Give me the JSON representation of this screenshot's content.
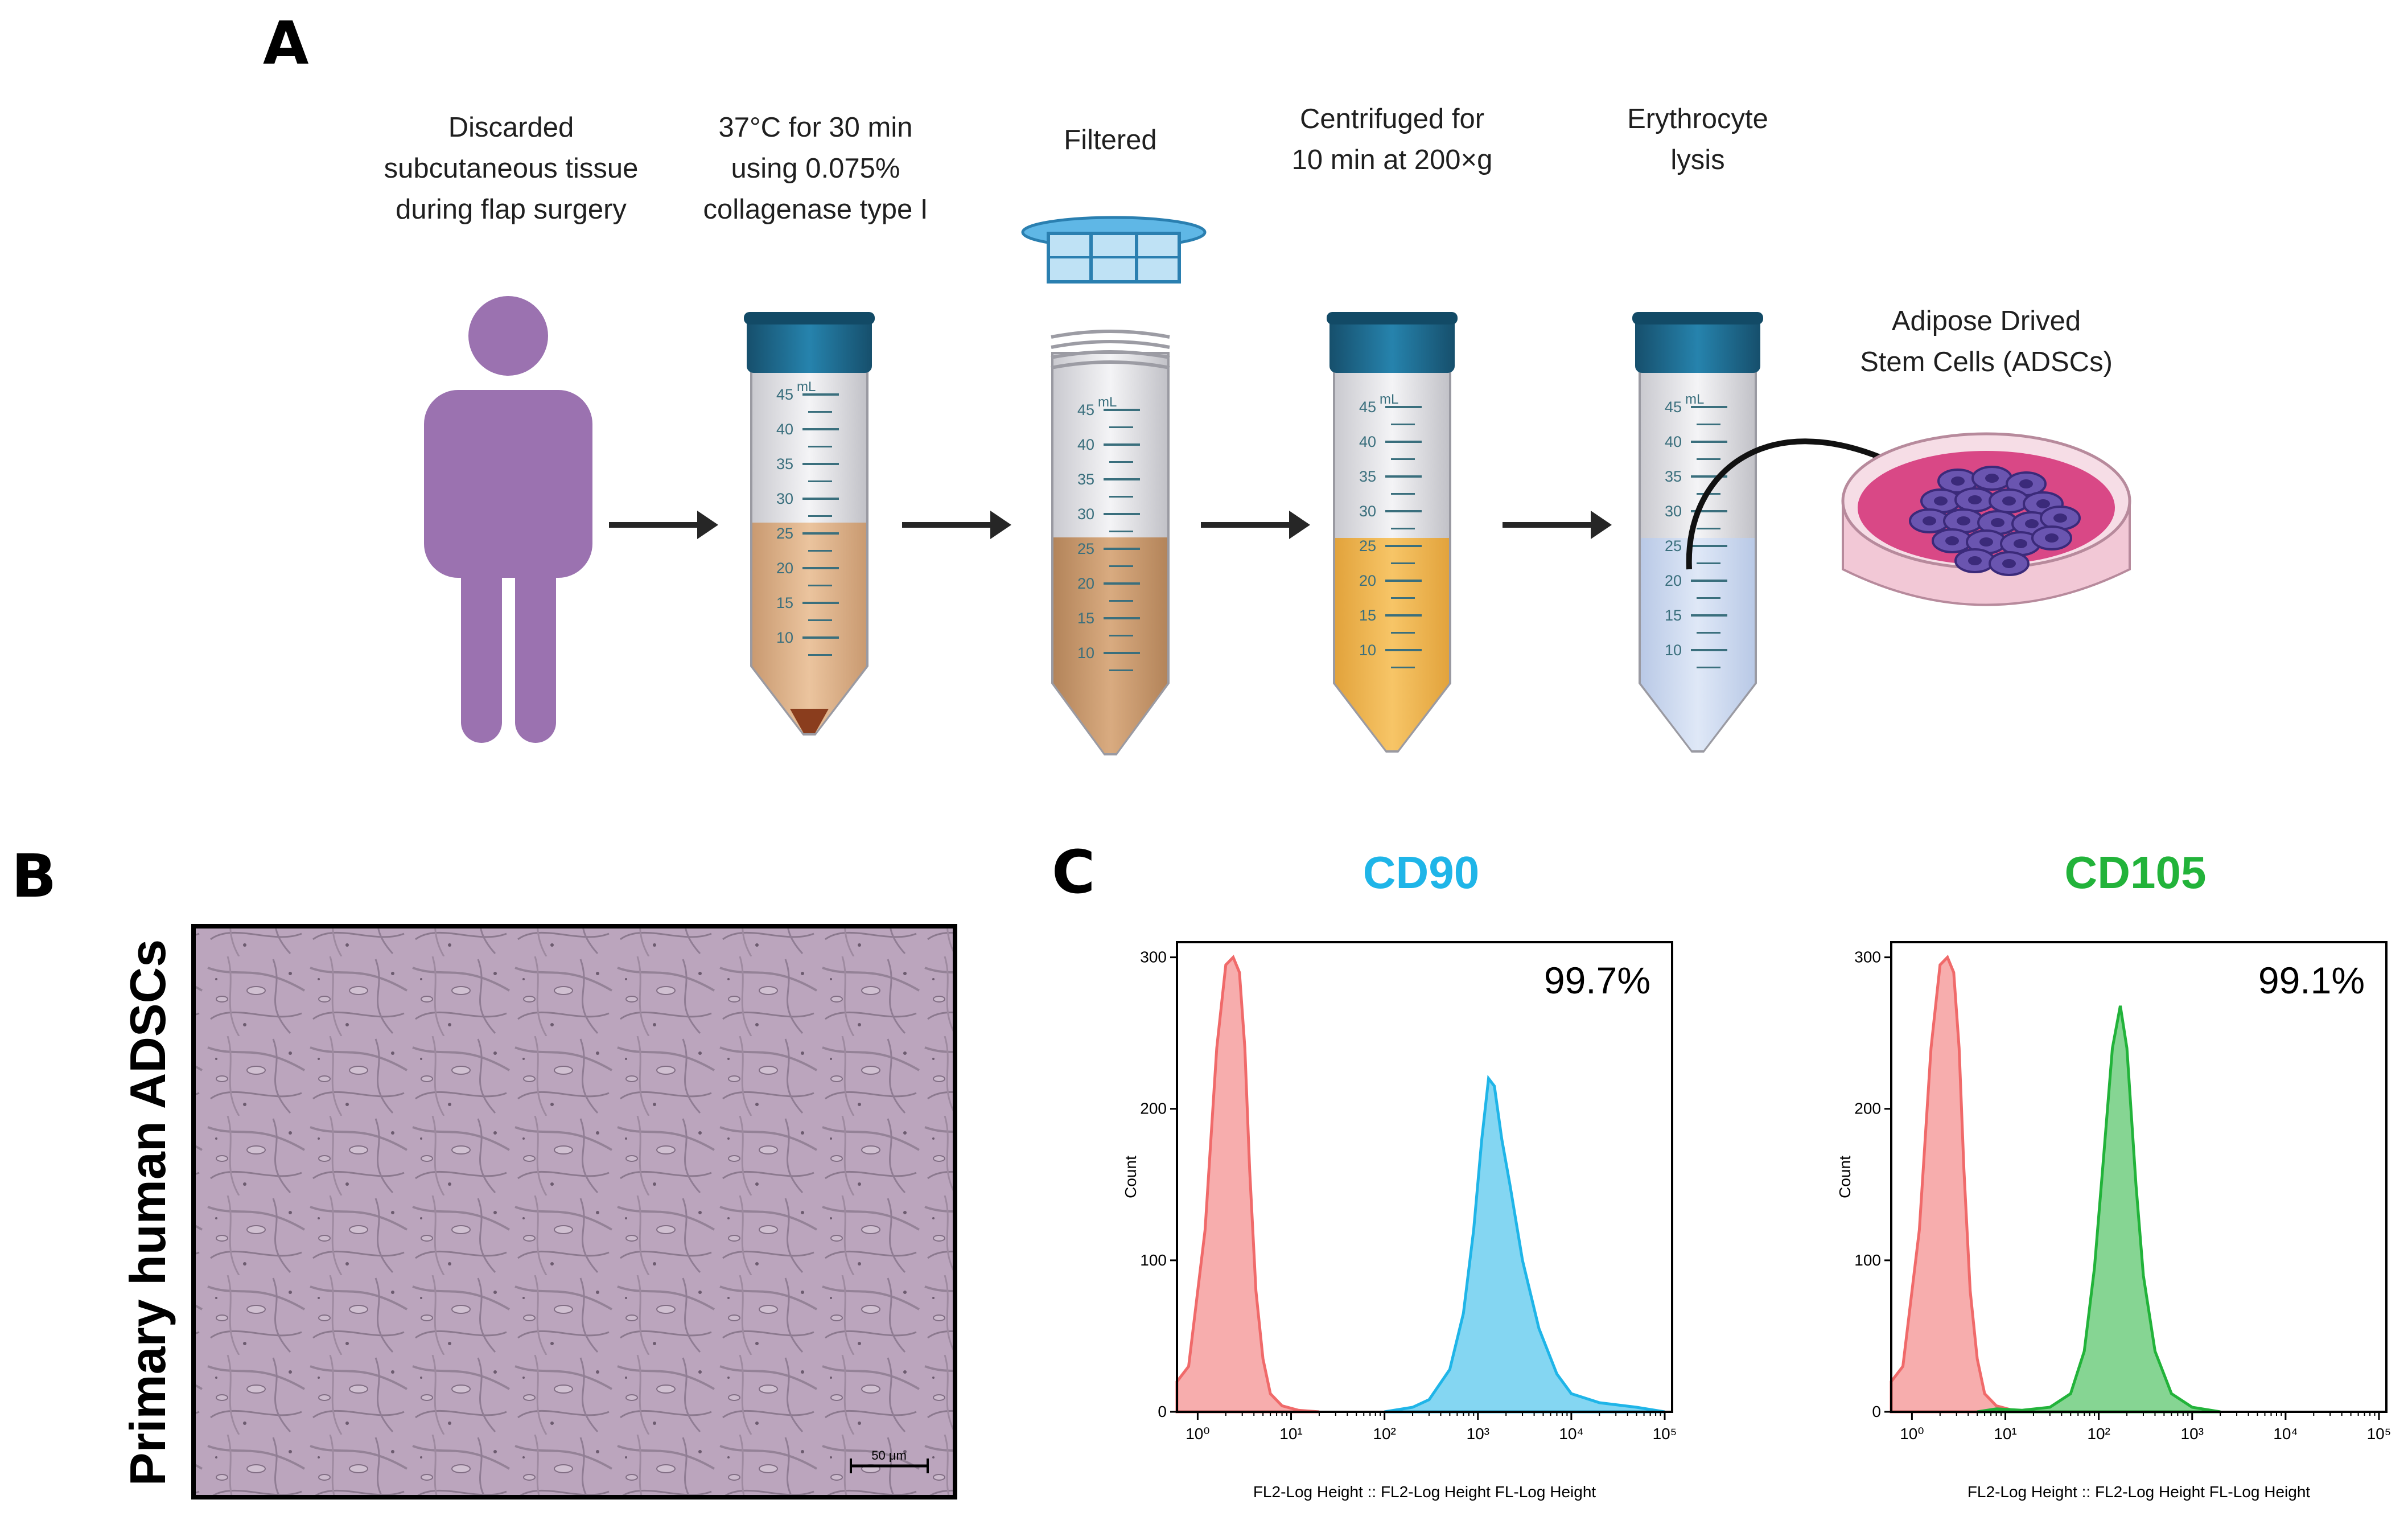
{
  "panels": {
    "a": "A",
    "b": "B",
    "c": "C"
  },
  "steps": {
    "s1": [
      "Discarded",
      "subcutaneous tissue",
      "during flap surgery"
    ],
    "s2": [
      "37°C for 30 min",
      "using 0.075%",
      "collagenase type I"
    ],
    "s3": [
      "Filtered"
    ],
    "s4": [
      "Centrifuged for",
      "10 min at  200×g"
    ],
    "s5": [
      "Erythrocyte",
      "lysis"
    ],
    "s6": [
      "Adipose Drived",
      "Stem Cells (ADSCs)"
    ]
  },
  "tube": {
    "unit": "mL",
    "ticks": [
      "45",
      "40",
      "35",
      "30",
      "25",
      "20",
      "15",
      "10"
    ]
  },
  "micrograph": {
    "ylabel": "Primary human ADSCs",
    "scale_bar": "50 μm"
  },
  "colors": {
    "person": "#9b72b0",
    "cap": "#1f6e96",
    "cd90": "#1fb5e8",
    "cd105": "#22b33a",
    "control": "#f06a6a"
  },
  "chart_data": [
    {
      "type": "area",
      "title": "CD90",
      "annotation": "99.7%",
      "ylabel": "Count",
      "xlabel": "FL2-Log  Height :: FL2-Log  Height FL-Log  Height",
      "xscale": "log",
      "xlim": [
        0.6,
        120000
      ],
      "ylim": [
        0,
        310
      ],
      "yticks": [
        "300",
        "200",
        "100",
        "0"
      ],
      "xtick_labels": [
        "10⁰",
        "10¹",
        "10²",
        "10³",
        "10⁴",
        "10⁵"
      ],
      "series": [
        {
          "name": "control",
          "color": "#f06a6a",
          "x": [
            0.6,
            0.8,
            1.2,
            1.6,
            2.0,
            2.4,
            2.8,
            3.2,
            3.6,
            4.2,
            5.0,
            6.0,
            8.0,
            12,
            20
          ],
          "y": [
            20,
            30,
            120,
            240,
            295,
            300,
            290,
            240,
            160,
            80,
            35,
            12,
            4,
            1,
            0
          ]
        },
        {
          "name": "CD90",
          "color": "#1fb5e8",
          "x": [
            100,
            200,
            300,
            500,
            700,
            900,
            1100,
            1300,
            1500,
            1800,
            2200,
            3000,
            4500,
            7000,
            10000,
            20000,
            50000,
            100000
          ],
          "y": [
            0,
            3,
            8,
            28,
            65,
            120,
            180,
            220,
            215,
            180,
            150,
            100,
            55,
            25,
            12,
            6,
            3,
            0
          ]
        }
      ]
    },
    {
      "type": "area",
      "title": "CD105",
      "annotation": "99.1%",
      "ylabel": "Count",
      "xlabel": "FL2-Log  Height :: FL2-Log  Height FL-Log  Height",
      "xscale": "log",
      "xlim": [
        0.6,
        120000
      ],
      "ylim": [
        0,
        310
      ],
      "yticks": [
        "300",
        "200",
        "100",
        "0"
      ],
      "xtick_labels": [
        "10⁰",
        "10¹",
        "10²",
        "10³",
        "10⁴",
        "10⁵"
      ],
      "series": [
        {
          "name": "control",
          "color": "#f06a6a",
          "x": [
            0.6,
            0.8,
            1.2,
            1.6,
            2.0,
            2.4,
            2.8,
            3.2,
            3.6,
            4.2,
            5.0,
            6.0,
            8.0,
            12,
            20
          ],
          "y": [
            20,
            30,
            120,
            240,
            295,
            300,
            290,
            240,
            160,
            80,
            35,
            12,
            4,
            1,
            0
          ]
        },
        {
          "name": "CD105",
          "color": "#22b33a",
          "x": [
            5,
            8,
            15,
            30,
            50,
            70,
            90,
            110,
            140,
            170,
            200,
            250,
            300,
            400,
            600,
            1000,
            2000
          ],
          "y": [
            0,
            2,
            1,
            3,
            12,
            40,
            95,
            160,
            240,
            268,
            240,
            150,
            90,
            40,
            12,
            3,
            0
          ]
        }
      ]
    }
  ]
}
